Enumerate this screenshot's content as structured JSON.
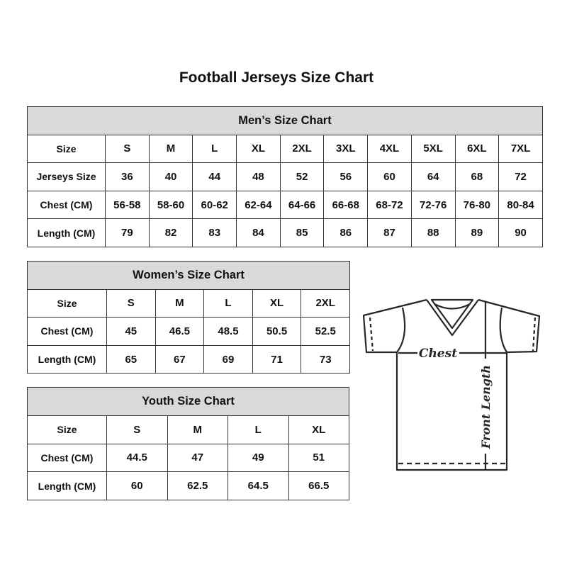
{
  "title": "Football Jerseys Size Chart",
  "men": {
    "caption": "Men’s Size Chart",
    "rows": [
      {
        "label": "Size",
        "values": [
          "S",
          "M",
          "L",
          "XL",
          "2XL",
          "3XL",
          "4XL",
          "5XL",
          "6XL",
          "7XL"
        ]
      },
      {
        "label": "Jerseys Size",
        "values": [
          "36",
          "40",
          "44",
          "48",
          "52",
          "56",
          "60",
          "64",
          "68",
          "72"
        ]
      },
      {
        "label": "Chest (CM)",
        "values": [
          "56-58",
          "58-60",
          "60-62",
          "62-64",
          "64-66",
          "66-68",
          "68-72",
          "72-76",
          "76-80",
          "80-84"
        ]
      },
      {
        "label": "Length (CM)",
        "values": [
          "79",
          "82",
          "83",
          "84",
          "85",
          "86",
          "87",
          "88",
          "89",
          "90"
        ]
      }
    ]
  },
  "women": {
    "caption": "Women’s Size Chart",
    "rows": [
      {
        "label": "Size",
        "values": [
          "S",
          "M",
          "L",
          "XL",
          "2XL"
        ]
      },
      {
        "label": "Chest (CM)",
        "values": [
          "45",
          "46.5",
          "48.5",
          "50.5",
          "52.5"
        ]
      },
      {
        "label": "Length (CM)",
        "values": [
          "65",
          "67",
          "69",
          "71",
          "73"
        ]
      }
    ]
  },
  "youth": {
    "caption": "Youth Size Chart",
    "rows": [
      {
        "label": "Size",
        "values": [
          "S",
          "M",
          "L",
          "XL"
        ]
      },
      {
        "label": "Chest (CM)",
        "values": [
          "44.5",
          "47",
          "49",
          "51"
        ]
      },
      {
        "label": "Length (CM)",
        "values": [
          "60",
          "62.5",
          "64.5",
          "66.5"
        ]
      }
    ]
  },
  "diagram": {
    "chest_label": "Chest",
    "length_label": "Front Length"
  }
}
